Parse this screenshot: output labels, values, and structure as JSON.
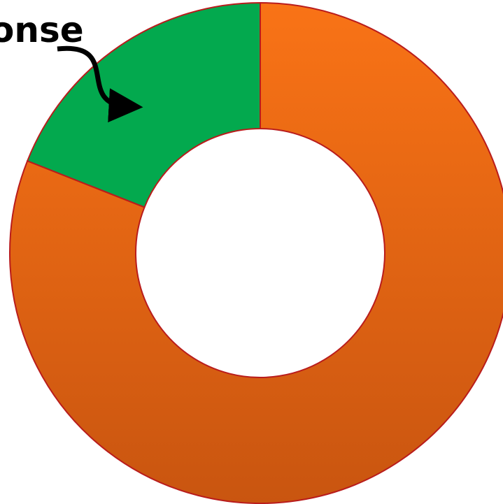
{
  "chart_data": {
    "type": "pie",
    "style": "donut",
    "slices": [
      {
        "value": 81,
        "color": "#f97316",
        "color_dark": "#c95510"
      },
      {
        "value": 19,
        "color": "#03a94e"
      }
    ],
    "edge_color": "#b91c1c",
    "annotation": {
      "text": "onse",
      "arrow": "curved",
      "points_to_slice": 1
    }
  }
}
